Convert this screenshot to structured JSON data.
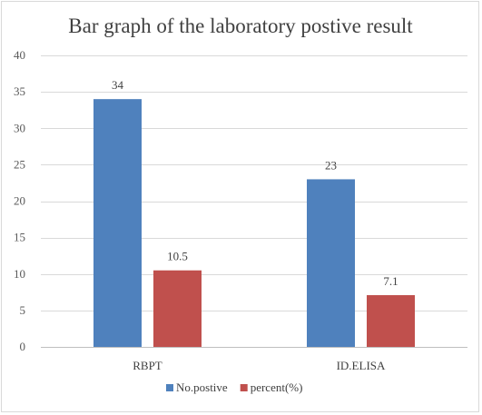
{
  "chart_data": {
    "type": "bar",
    "title": "Bar graph of  the laboratory postive result",
    "categories": [
      "RBPT",
      "ID.ELISA"
    ],
    "series": [
      {
        "name": "No.postive",
        "values": [
          34,
          23
        ],
        "color": "#4f81bd"
      },
      {
        "name": "percent(%)",
        "values": [
          10.5,
          7.1
        ],
        "color": "#c0504d"
      }
    ],
    "y_ticks": [
      0,
      5,
      10,
      15,
      20,
      25,
      30,
      35,
      40
    ],
    "ylim": [
      0,
      40
    ],
    "grid": true,
    "legend": "bottom"
  }
}
